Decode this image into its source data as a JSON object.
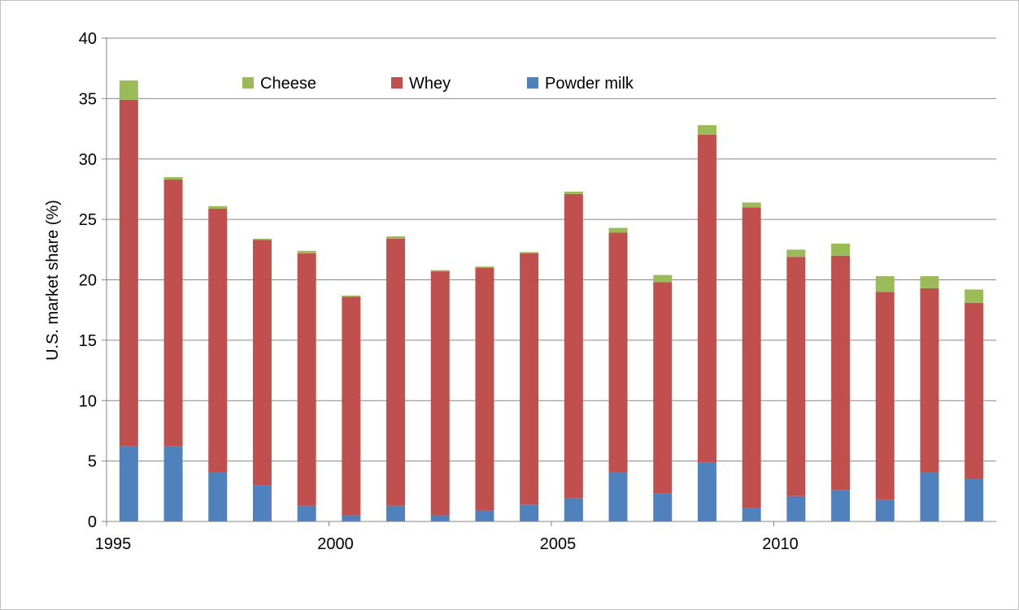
{
  "chart_data": {
    "type": "bar",
    "stacked": true,
    "title": "",
    "xlabel": "",
    "ylabel": "U.S. market share (%)",
    "ylim": [
      0,
      40
    ],
    "yticks": [
      0,
      5,
      10,
      15,
      20,
      25,
      30,
      35,
      40
    ],
    "xticks": [
      1995,
      2000,
      2005,
      2010
    ],
    "grid": true,
    "legend_position": "top-center",
    "categories": [
      1995,
      1996,
      1997,
      1998,
      1999,
      2000,
      2001,
      2002,
      2003,
      2004,
      2005,
      2006,
      2007,
      2008,
      2009,
      2010,
      2011,
      2012,
      2013,
      2014
    ],
    "series": [
      {
        "name": "Powder milk",
        "color": "#4f81bd",
        "values": [
          6.2,
          6.2,
          4.1,
          3.0,
          1.3,
          0.5,
          1.3,
          0.5,
          0.9,
          1.4,
          1.9,
          4.1,
          2.3,
          4.9,
          1.1,
          2.1,
          2.6,
          1.8,
          4.1,
          3.5
        ]
      },
      {
        "name": "Whey",
        "color": "#c0504d",
        "values": [
          28.7,
          22.1,
          21.8,
          20.3,
          20.9,
          18.1,
          22.1,
          20.2,
          20.1,
          20.8,
          25.2,
          19.8,
          17.5,
          27.1,
          24.9,
          19.8,
          19.4,
          17.2,
          15.2,
          14.6
        ]
      },
      {
        "name": "Cheese",
        "color": "#9bbb59",
        "values": [
          1.6,
          0.2,
          0.2,
          0.1,
          0.2,
          0.1,
          0.2,
          0.1,
          0.1,
          0.1,
          0.2,
          0.4,
          0.6,
          0.8,
          0.4,
          0.6,
          1.0,
          1.3,
          1.0,
          1.1
        ]
      }
    ]
  }
}
